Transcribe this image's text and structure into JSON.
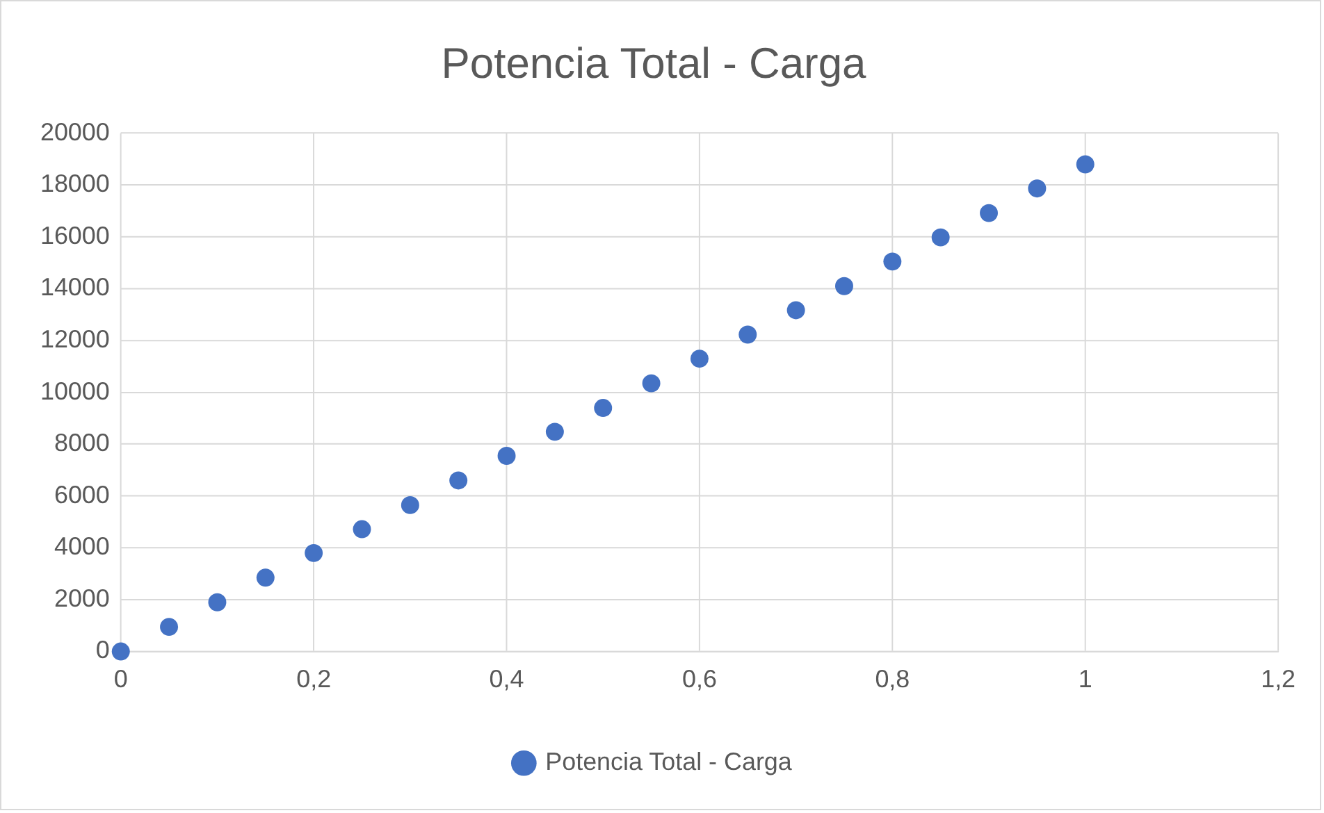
{
  "chart_data": {
    "type": "scatter",
    "title": "Potencia Total - Carga",
    "x": [
      0,
      0.05,
      0.1,
      0.15,
      0.2,
      0.25,
      0.3,
      0.35,
      0.4,
      0.45,
      0.5,
      0.55,
      0.6,
      0.65,
      0.7,
      0.75,
      0.8,
      0.85,
      0.9,
      0.95,
      1
    ],
    "series": [
      {
        "name": "Potencia Total - Carga",
        "color": "#4472c4",
        "values": [
          0,
          950,
          1900,
          2850,
          3800,
          4720,
          5650,
          6600,
          7550,
          8480,
          9400,
          10350,
          11300,
          12230,
          13170,
          14100,
          15050,
          15980,
          16920,
          17870,
          18800
        ]
      }
    ],
    "xlim": [
      0,
      1.2
    ],
    "xticks": [
      0,
      {
        "value": 0.2,
        "label": "0,2"
      },
      {
        "value": 0.4,
        "label": "0,4"
      },
      {
        "value": 0.6,
        "label": "0,6"
      },
      {
        "value": 0.8,
        "label": "0,8"
      },
      1,
      {
        "value": 1.2,
        "label": "1,2"
      }
    ],
    "ylim": [
      0,
      20000
    ],
    "yticks": [
      0,
      2000,
      4000,
      6000,
      8000,
      10000,
      12000,
      14000,
      16000,
      18000,
      20000
    ],
    "grid": true,
    "legend": "bottom",
    "marker": "circle"
  }
}
